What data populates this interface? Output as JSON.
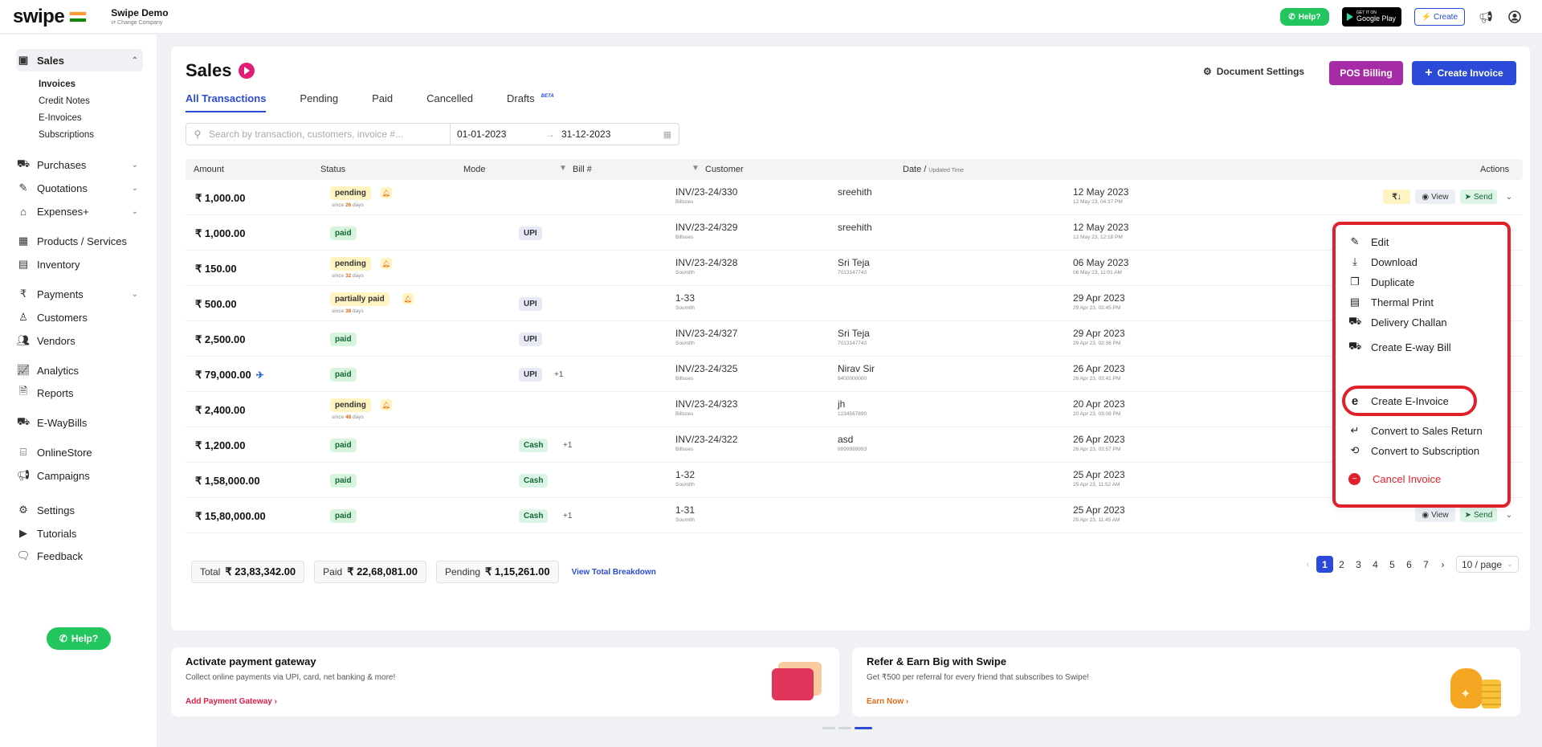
{
  "topbar": {
    "logo": "swipe",
    "company_name": "Swipe Demo",
    "change_company": "⇄ Change Company",
    "help_label": "Help?",
    "google_play_small": "GET IT ON",
    "google_play_label": "Google Play",
    "create_label": "Create"
  },
  "sidebar": {
    "sales": "Sales",
    "sub_items": [
      "Invoices",
      "Credit Notes",
      "E-Invoices",
      "Subscriptions"
    ],
    "purchases": "Purchases",
    "quotations": "Quotations",
    "expenses": "Expenses+",
    "products": "Products / Services",
    "inventory": "Inventory",
    "payments": "Payments",
    "customers": "Customers",
    "vendors": "Vendors",
    "analytics": "Analytics",
    "reports": "Reports",
    "ewaybills": "E-WayBills",
    "onlinestore": "OnlineStore",
    "campaigns": "Campaigns",
    "settings": "Settings",
    "tutorials": "Tutorials",
    "feedback": "Feedback",
    "help": "Help?"
  },
  "page": {
    "title": "Sales",
    "tabs": [
      "All Transactions",
      "Pending",
      "Paid",
      "Cancelled",
      "Drafts"
    ],
    "beta": "BETA",
    "document_settings": "Document Settings",
    "pos_billing": "POS Billing",
    "create_invoice": "Create Invoice",
    "search_placeholder": "Search by transaction, customers, invoice #...",
    "date_from": "01-01-2023",
    "date_to": "31-12-2023",
    "date_sep": "→"
  },
  "table": {
    "headers": {
      "amount": "Amount",
      "status": "Status",
      "mode": "Mode",
      "bill": "Bill #",
      "customer": "Customer",
      "date": "Date /",
      "date_sub": "Updated Time",
      "actions": "Actions"
    },
    "rows": [
      {
        "amount": "₹ 1,000.00",
        "status": "pending",
        "since_pre": "since ",
        "since_days": "26",
        "since_post": " days",
        "mode": "",
        "bill": "INV/23-24/330",
        "bill_sub": "Billsoes",
        "customer": "sreehith",
        "customer_sub": "",
        "date": "12 May 2023",
        "date_sub": "12 May 23, 04:37 PM"
      },
      {
        "amount": "₹ 1,000.00",
        "status": "paid",
        "mode": "UPI",
        "bill": "INV/23-24/329",
        "bill_sub": "Billsoes",
        "customer": "sreehith",
        "customer_sub": "",
        "date": "12 May 2023",
        "date_sub": "12 May 23, 12:18 PM"
      },
      {
        "amount": "₹ 150.00",
        "status": "pending",
        "since_pre": "since ",
        "since_days": "32",
        "since_post": " days",
        "mode": "",
        "bill": "INV/23-24/328",
        "bill_sub": "Soumith",
        "customer": "Sri Teja",
        "customer_sub": "7013147743",
        "date": "06 May 2023",
        "date_sub": "06 May 23, 11:01 AM"
      },
      {
        "amount": "₹ 500.00",
        "status": "partially paid",
        "since_pre": "since ",
        "since_days": "38",
        "since_post": " days",
        "mode": "UPI",
        "bill": "1-33",
        "bill_sub": "Soumith",
        "customer": "",
        "customer_sub": "",
        "date": "29 Apr 2023",
        "date_sub": "29 Apr 23, 02:45 PM"
      },
      {
        "amount": "₹ 2,500.00",
        "status": "paid",
        "mode": "UPI",
        "bill": "INV/23-24/327",
        "bill_sub": "Soumith",
        "customer": "Sri Teja",
        "customer_sub": "7013147743",
        "date": "29 Apr 2023",
        "date_sub": "29 Apr 23, 02:38 PM"
      },
      {
        "amount": "₹ 79,000.00",
        "status": "paid",
        "mode": "UPI",
        "mode_extra": "+1",
        "bill": "INV/23-24/325",
        "bill_sub": "Billsoes",
        "customer": "Nirav Sir",
        "customer_sub": "9400000000",
        "date": "26 Apr 2023",
        "date_sub": "26 Apr 23, 03:41 PM"
      },
      {
        "amount": "₹ 2,400.00",
        "status": "pending",
        "since_pre": "since ",
        "since_days": "48",
        "since_post": " days",
        "mode": "",
        "bill": "INV/23-24/323",
        "bill_sub": "Billsoes",
        "customer": "jh",
        "customer_sub": "1234567890",
        "date": "20 Apr 2023",
        "date_sub": "20 Apr 23, 03:08 PM"
      },
      {
        "amount": "₹ 1,200.00",
        "status": "paid",
        "mode": "Cash",
        "mode_extra": "+1",
        "bill": "INV/23-24/322",
        "bill_sub": "Billsoes",
        "customer": "asd",
        "customer_sub": "9999999993",
        "date": "26 Apr 2023",
        "date_sub": "26 Apr 23, 03:57 PM"
      },
      {
        "amount": "₹ 1,58,000.00",
        "status": "paid",
        "mode": "Cash",
        "bill": "1-32",
        "bill_sub": "Soumith",
        "customer": "",
        "customer_sub": "",
        "date": "25 Apr 2023",
        "date_sub": "25 Apr 23, 11:52 AM"
      },
      {
        "amount": "₹ 15,80,000.00",
        "status": "paid",
        "mode": "Cash",
        "mode_extra": "+1",
        "bill": "1-31",
        "bill_sub": "Soumith",
        "customer": "",
        "customer_sub": "",
        "date": "25 Apr 2023",
        "date_sub": "25 Apr 23, 11:45 AM"
      }
    ],
    "action_view": "View",
    "action_send": "Send",
    "action_rupee": "₹↓"
  },
  "menu": {
    "items": [
      "Edit",
      "Download",
      "Duplicate",
      "Thermal Print",
      "Delivery Challan",
      "Create E-way Bill",
      "Create E-Invoice",
      "Convert to Sales Return",
      "Convert to Subscription",
      "Cancel Invoice"
    ]
  },
  "totals": {
    "total_label": "Total",
    "total_value": "₹ 23,83,342.00",
    "paid_label": "Paid",
    "paid_value": "₹ 22,68,081.00",
    "pending_label": "Pending",
    "pending_value": "₹ 1,15,261.00",
    "breakdown": "View Total Breakdown"
  },
  "pagination": {
    "pages": [
      "1",
      "2",
      "3",
      "4",
      "5",
      "6",
      "7"
    ],
    "current": "1",
    "per_page": "10 / page"
  },
  "promos": {
    "gateway_title": "Activate payment gateway",
    "gateway_desc": "Collect online payments via UPI, card, net banking & more!",
    "gateway_link": "Add Payment Gateway ›",
    "refer_title": "Refer & Earn Big with Swipe",
    "refer_desc": "Get ₹500 per referral for every friend that subscribes to Swipe!",
    "refer_link": "Earn Now ›"
  },
  "colors": {
    "primary": "#2b4ad8",
    "pos": "#a62ba6",
    "whatsapp": "#22c55e",
    "highlight": "#e0202a"
  }
}
